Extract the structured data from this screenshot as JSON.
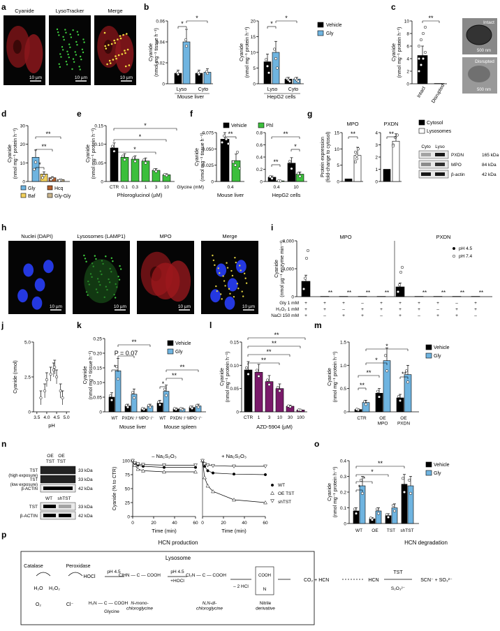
{
  "panel_letters": [
    "a",
    "b",
    "c",
    "d",
    "e",
    "f",
    "g",
    "h",
    "i",
    "j",
    "k",
    "l",
    "m",
    "n",
    "o",
    "p"
  ],
  "micro_a": {
    "titles": [
      "Cyanide",
      "LysoTracker",
      "Merge"
    ],
    "scale": "10 µm"
  },
  "micro_h": {
    "titles": [
      "Nuclei (DAPI)",
      "Lysosomes (LAMP1)",
      "MPO",
      "Merge"
    ],
    "scale": "10 µm"
  },
  "colors": {
    "vehicle": "#000000",
    "gly": "#6fb4e0",
    "phl": "#3cbf3c",
    "baf": "#f2d15c",
    "hcq": "#b45f2d",
    "glygly": "#c8b48c",
    "purple": "#7a1a6a"
  },
  "panel_b": {
    "legend": [
      "Vehicle",
      "Gly"
    ],
    "left": {
      "ylabel": "Cyanide\n(nmol mg⁻¹ tissue h⁻¹)",
      "ticks": [
        "0",
        "0.02",
        "0.04",
        "0.06"
      ],
      "groups": [
        "Lyso",
        "Cyto"
      ],
      "caption": "Mouse liver",
      "stars": [
        "*",
        "*"
      ]
    },
    "right": {
      "ylabel": "Cyanide\n(nmol mg⁻¹ protein h⁻¹)",
      "ticks": [
        "0",
        "5",
        "10",
        "15",
        "20"
      ],
      "groups": [
        "Lyso",
        "Cyto"
      ],
      "caption": "HepG2 cells",
      "stars": [
        "*",
        "*"
      ]
    }
  },
  "panel_c": {
    "ylabel": "Cyanide\n(nmol mg⁻¹ protein h⁻¹)",
    "ticks": [
      "0",
      "2",
      "4",
      "6",
      "8",
      "10"
    ],
    "groups": [
      "Intact",
      "Disrupted"
    ],
    "stars": "**",
    "em": [
      "Intact",
      "Disrupted"
    ],
    "em_scale": "500 nm"
  },
  "panel_d": {
    "ylabel": "Cyanide\n(nmol mg⁻¹ protein h⁻¹)",
    "ticks": [
      "0",
      "10",
      "20",
      "30"
    ],
    "legend": [
      "Gly",
      "Hcq",
      "Baf",
      "Gly-Gly"
    ],
    "stars": [
      "*",
      "**",
      "**"
    ]
  },
  "panel_e": {
    "ylabel": "Cyanide\n(nmol mg⁻¹ protein h⁻¹)",
    "ticks": [
      "0",
      "0.05",
      "0.10",
      "0.15"
    ],
    "categories": [
      "CTR",
      "0.1",
      "0.3",
      "1",
      "3",
      "10"
    ],
    "xlabel": "Phloroglucinol (µM)",
    "stars": [
      "*",
      "*",
      "*"
    ]
  },
  "panel_f": {
    "legend": [
      "Vehicle",
      "Phl"
    ],
    "left": {
      "ylabel": "Cyanide\n(nmol mg⁻¹ tissue h⁻¹)",
      "ticks": [
        "0",
        "0.025",
        "0.050",
        "0.075"
      ],
      "xrow": "Glycine (mM)",
      "xval": "0.4",
      "caption": "Mouse liver",
      "stars": [
        "**"
      ]
    },
    "right": {
      "ylabel": "",
      "ticks": [
        "0",
        "0.2",
        "0.4",
        "0.6",
        "0.8"
      ],
      "xvals": [
        "0.4",
        "10"
      ],
      "caption": "HepG2 cells",
      "stars": [
        "**",
        "**",
        "*"
      ]
    }
  },
  "panel_g": {
    "ylabel": "Protein expression\n(fold-change to cytosol)",
    "titles": [
      "MPO",
      "PXDN"
    ],
    "left_ticks": [
      "0",
      "5",
      "10",
      "15"
    ],
    "right_ticks": [
      "0",
      "1",
      "2",
      "3",
      "4"
    ],
    "legend": [
      "Cytosol",
      "Lysosomes"
    ],
    "stars": [
      "**",
      "**"
    ],
    "blot_cols": [
      "Cyto",
      "Lyso"
    ],
    "blot_rows": [
      {
        "name": "PXDN",
        "kda": "165 kDa"
      },
      {
        "name": "MPO",
        "kda": "84 kDa"
      },
      {
        "name": "β-actin",
        "kda": "42 kDa"
      }
    ]
  },
  "panel_i": {
    "ylabel": "Cyanide\n(nmol µg⁻¹ enzyme min⁻¹)",
    "ticks": [
      "0",
      "4,000",
      "8,000"
    ],
    "titles": [
      "MPO",
      "PXDN"
    ],
    "legend": [
      "pH 4.5",
      "pH 7.4"
    ],
    "rows": [
      {
        "label": "Gly 1 mM",
        "signs": [
          "+",
          "+",
          "+",
          "–",
          "+",
          "+",
          "+",
          "+",
          "–",
          "+"
        ]
      },
      {
        "label": "H₂O₂ 1 mM",
        "signs": [
          "+",
          "+",
          "–",
          "+",
          "+",
          "+",
          "+",
          "–",
          "+",
          "+"
        ]
      },
      {
        "label": "NaCl 150 mM",
        "signs": [
          "+",
          "–",
          "+",
          "+",
          "–",
          "+",
          "–",
          "+",
          "+",
          "–"
        ]
      }
    ],
    "stars": "**"
  },
  "panel_j": {
    "ylabel": "Cyanide (nmol)",
    "ticks": [
      "0",
      "2.5",
      "5.0"
    ],
    "xticks": [
      "3.5",
      "4.0",
      "4.5",
      "5.0"
    ],
    "xlabel": "pH"
  },
  "panel_k": {
    "ylabel": "Cyanide\n(nmol mg⁻¹ tissue h⁻¹)",
    "ticks": [
      "0",
      "0.05",
      "0.10",
      "0.15",
      "0.20",
      "0.25"
    ],
    "legend": [
      "Vehicle",
      "Gly"
    ],
    "groups": [
      "WT",
      "PXDN⁻/⁻",
      "MPO⁻/⁻",
      "WT",
      "PXDN⁻/⁻",
      "MPO⁻/⁻"
    ],
    "captions": [
      "Mouse liver",
      "Mouse spleen"
    ],
    "pval": "P = 0.07",
    "stars": [
      "*",
      "**",
      "*",
      "**",
      "**"
    ]
  },
  "panel_l": {
    "ylabel": "Cyanide\n(nmol mg⁻¹ protein h⁻¹)",
    "ticks": [
      "0",
      "0.05",
      "0.10",
      "0.15"
    ],
    "categories": [
      "CTR",
      "1",
      "3",
      "10",
      "30",
      "100"
    ],
    "xlabel": "AZD-5904 (µM)",
    "stars": [
      "**",
      "**",
      "**",
      "**"
    ]
  },
  "panel_m": {
    "ylabel": "Cyanide\n(nmol mg⁻¹ protein h⁻¹)",
    "ticks": [
      "0",
      "0.5",
      "1.0",
      "1.5"
    ],
    "legend": [
      "Vehicle",
      "Gly"
    ],
    "groups": [
      "CTR",
      "OE\nMPO",
      "OE\nPXDN"
    ],
    "stars": [
      "*",
      "*",
      "**",
      "**",
      "**"
    ]
  },
  "panel_n": {
    "blot_top_cols": [
      "OE",
      "OE",
      "TST",
      "TST"
    ],
    "blot_top_rows": [
      {
        "name": "TST\n(high exposure)",
        "kda": "33 kDa"
      },
      {
        "name": "TST\n(low exposure)",
        "kda": "33 kDa"
      },
      {
        "name": "β-ACTIN",
        "kda": "42 kDa"
      }
    ],
    "blot_bot_cols": [
      "WT",
      "shTST"
    ],
    "blot_bot_rows": [
      {
        "name": "TST",
        "kda": "33 kDa"
      },
      {
        "name": "β-ACTIN",
        "kda": "42 kDa"
      }
    ],
    "ylabel": "Cyanide (% to CTR)",
    "ticks": [
      "0",
      "25",
      "50",
      "75",
      "100"
    ],
    "xticks": [
      "0",
      "20",
      "40",
      "60"
    ],
    "xlabel": "Time (min)",
    "titles": [
      "– Na₂S₂O₃",
      "+ Na₂S₂O₃"
    ],
    "legend": [
      "WT",
      "OE TST",
      "shTST"
    ]
  },
  "panel_o": {
    "ylabel": "Cyanide\n(nmol mg⁻¹ protein h⁻¹)",
    "ticks": [
      "0",
      "0.1",
      "0.2",
      "0.3",
      "0.4"
    ],
    "legend": [
      "Vehicle",
      "Gly"
    ],
    "groups": [
      "WT",
      "OE",
      "TST",
      "shTST"
    ],
    "stars": [
      "*",
      "*",
      "*",
      "**"
    ]
  },
  "panel_p": {
    "title_left": "HCN production",
    "title_right": "HCN degradation",
    "lysosome": "Lysosome",
    "catalase": "Catalase",
    "peroxidase": "Peroxidase",
    "hocl": "HOCl",
    "h2o": "H₂O",
    "h2o2": "H₂O₂",
    "o2": "O₂",
    "cl": "Cl⁻",
    "ph": "pH 4.5",
    "hocl2": "+HOCl",
    "minus_hcl": "– 2 HCl",
    "gly_label": "Glycine",
    "mono": "N-mono-\nchloroglycine",
    "di": "N,N-di-\nchloroglycine",
    "nitrile": "Nitrile\nderivative",
    "product": "CO₂ + HCN",
    "hcn": "HCN",
    "tst": "TST",
    "s2o3": "S₂O₃²⁻",
    "final": "SCN⁻ + SO₃²⁻"
  }
}
